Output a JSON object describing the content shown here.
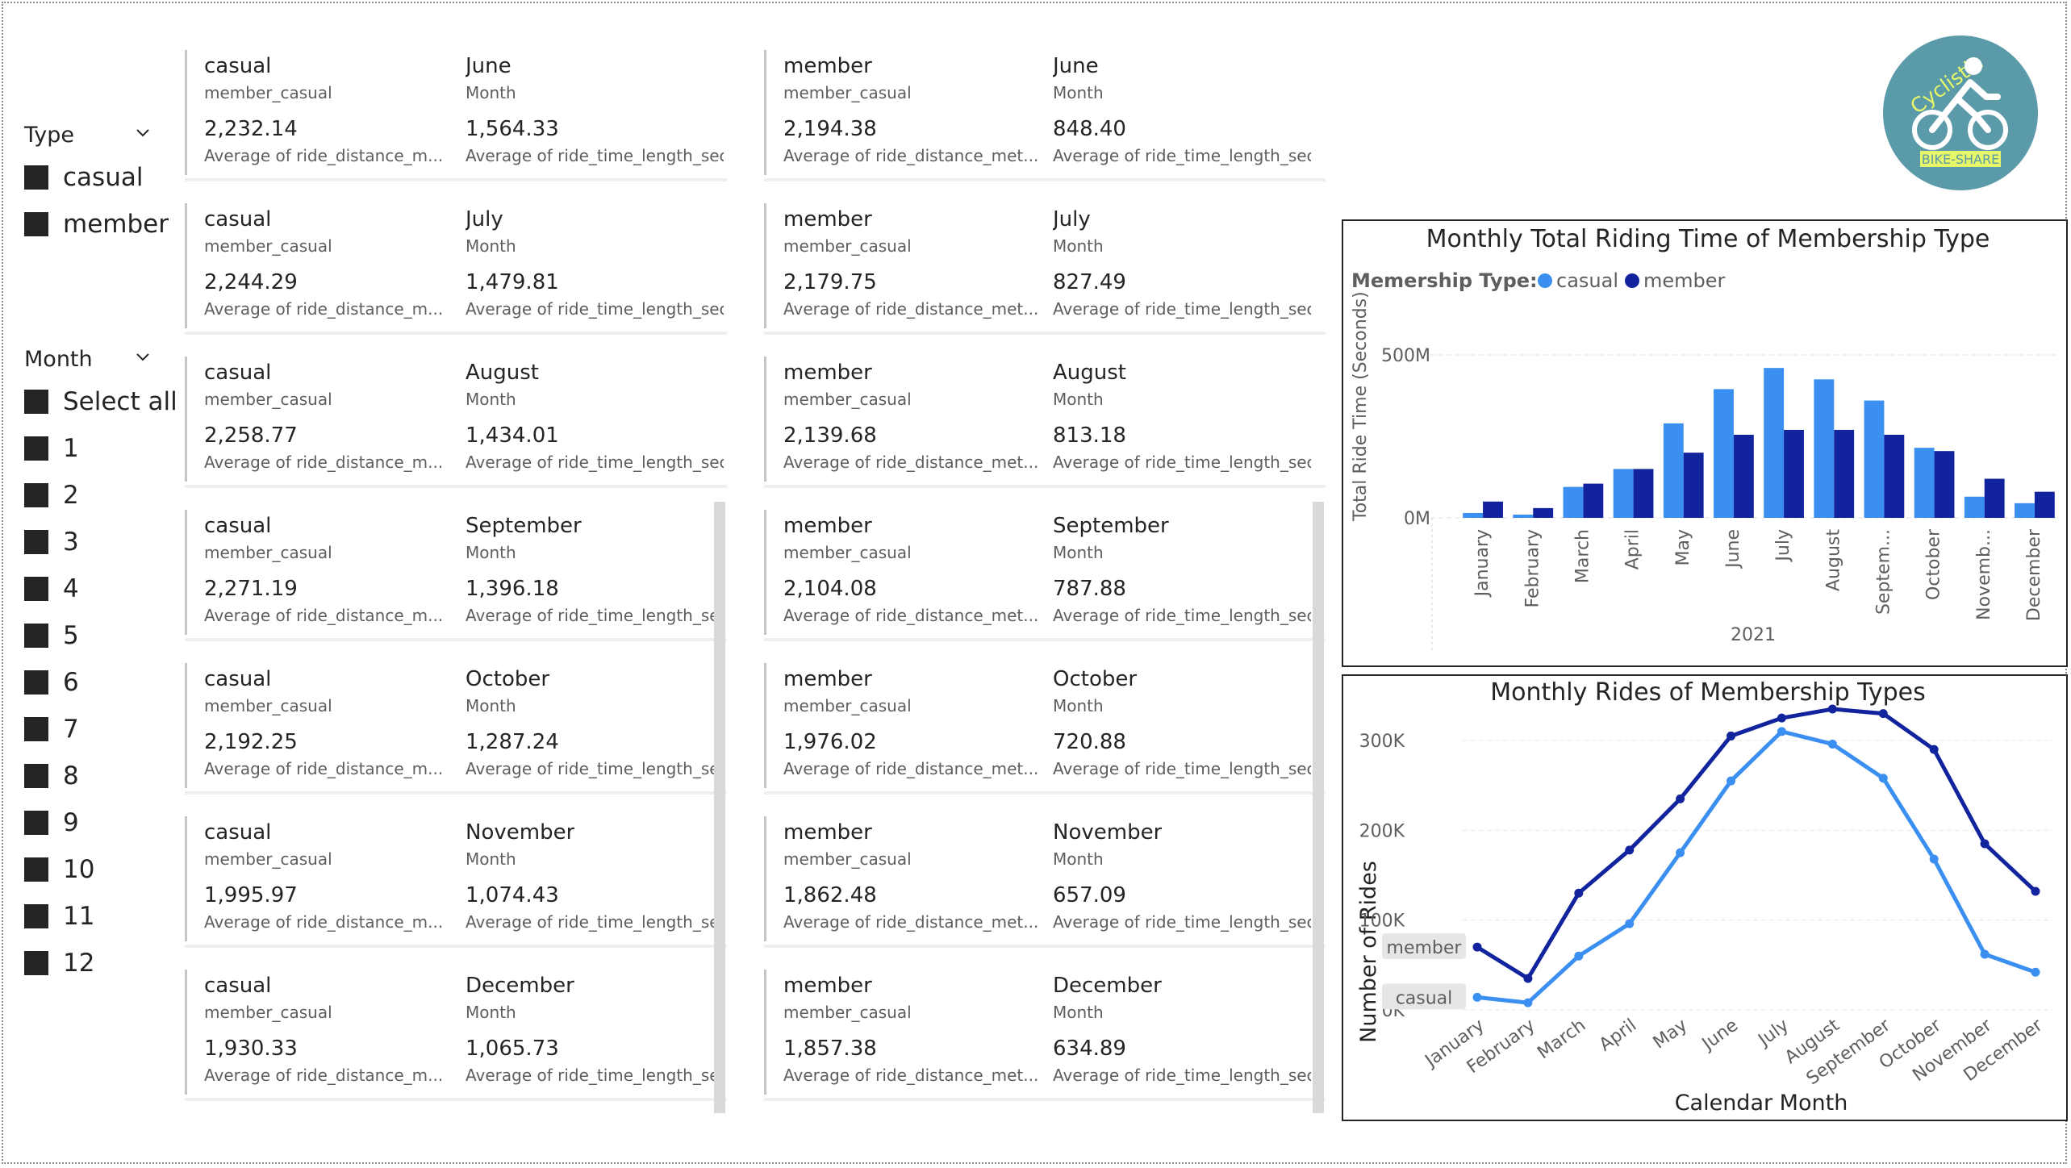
{
  "type_slicer": {
    "title": "Type",
    "items": [
      "casual",
      "member"
    ]
  },
  "month_slicer": {
    "title": "Month",
    "items": [
      "Select all",
      "1",
      "2",
      "3",
      "4",
      "5",
      "6",
      "7",
      "8",
      "9",
      "10",
      "11",
      "12"
    ]
  },
  "cards_labels": {
    "member_casual": "member_casual",
    "month": "Month",
    "casual_distance": "Average of ride_distance_m...",
    "casual_time": "Average of ride_time_length_sec...",
    "member_distance": "Average of ride_distance_met...",
    "member_time": "Average of ride_time_length_seco..."
  },
  "casual_cards": [
    {
      "type": "casual",
      "month": "June",
      "distance": "2,232.14",
      "time": "1,564.33"
    },
    {
      "type": "casual",
      "month": "July",
      "distance": "2,244.29",
      "time": "1,479.81"
    },
    {
      "type": "casual",
      "month": "August",
      "distance": "2,258.77",
      "time": "1,434.01"
    },
    {
      "type": "casual",
      "month": "September",
      "distance": "2,271.19",
      "time": "1,396.18"
    },
    {
      "type": "casual",
      "month": "October",
      "distance": "2,192.25",
      "time": "1,287.24"
    },
    {
      "type": "casual",
      "month": "November",
      "distance": "1,995.97",
      "time": "1,074.43"
    },
    {
      "type": "casual",
      "month": "December",
      "distance": "1,930.33",
      "time": "1,065.73"
    }
  ],
  "member_cards": [
    {
      "type": "member",
      "month": "June",
      "distance": "2,194.38",
      "time": "848.40"
    },
    {
      "type": "member",
      "month": "July",
      "distance": "2,179.75",
      "time": "827.49"
    },
    {
      "type": "member",
      "month": "August",
      "distance": "2,139.68",
      "time": "813.18"
    },
    {
      "type": "member",
      "month": "September",
      "distance": "2,104.08",
      "time": "787.88"
    },
    {
      "type": "member",
      "month": "October",
      "distance": "1,976.02",
      "time": "720.88"
    },
    {
      "type": "member",
      "month": "November",
      "distance": "1,862.48",
      "time": "657.09"
    },
    {
      "type": "member",
      "month": "December",
      "distance": "1,857.38",
      "time": "634.89"
    }
  ],
  "logo": {
    "line1": "Cyclistic",
    "line2": "BIKE-SHARE",
    "bg_color": "#5b9aa8",
    "accent_color": "#e8f76a"
  },
  "colors": {
    "casual": "#3a8ff0",
    "member": "#12239e"
  },
  "chart_data": [
    {
      "type": "bar",
      "title": "Monthly Total Riding Time of Membership Type",
      "legend_title": "Memership Type:",
      "xlabel": "2021",
      "ylabel": "Total Ride Time (Seconds)",
      "y_ticks": [
        "500M",
        "0M"
      ],
      "ylim": [
        0,
        500000000
      ],
      "categories": [
        "January",
        "February",
        "March",
        "April",
        "May",
        "June",
        "July",
        "August",
        "Septem...",
        "October",
        "Novemb...",
        "December"
      ],
      "series": [
        {
          "name": "casual",
          "values": [
            15000000,
            10000000,
            95000000,
            150000000,
            290000000,
            395000000,
            460000000,
            425000000,
            360000000,
            215000000,
            65000000,
            45000000
          ]
        },
        {
          "name": "member",
          "values": [
            50000000,
            30000000,
            105000000,
            150000000,
            200000000,
            255000000,
            270000000,
            270000000,
            255000000,
            205000000,
            120000000,
            80000000
          ]
        }
      ],
      "legend": "top-left",
      "grid": true
    },
    {
      "type": "line",
      "title": "Monthly Rides of Membership Types",
      "xlabel": "Calendar Month",
      "ylabel": "Number of Rides",
      "y_ticks": [
        "300K",
        "200K",
        "100K",
        "0K"
      ],
      "ylim": [
        0,
        300000
      ],
      "categories": [
        "January",
        "February",
        "March",
        "April",
        "May",
        "June",
        "July",
        "August",
        "September",
        "October",
        "November",
        "December"
      ],
      "series": [
        {
          "name": "member",
          "values": [
            70000,
            35000,
            130000,
            178000,
            235000,
            305000,
            325000,
            335000,
            330000,
            290000,
            185000,
            132000
          ]
        },
        {
          "name": "casual",
          "values": [
            14000,
            8000,
            60000,
            96000,
            175000,
            255000,
            310000,
            296000,
            258000,
            168000,
            62000,
            42000
          ]
        }
      ],
      "legend": "end labels at left",
      "grid": true
    }
  ]
}
